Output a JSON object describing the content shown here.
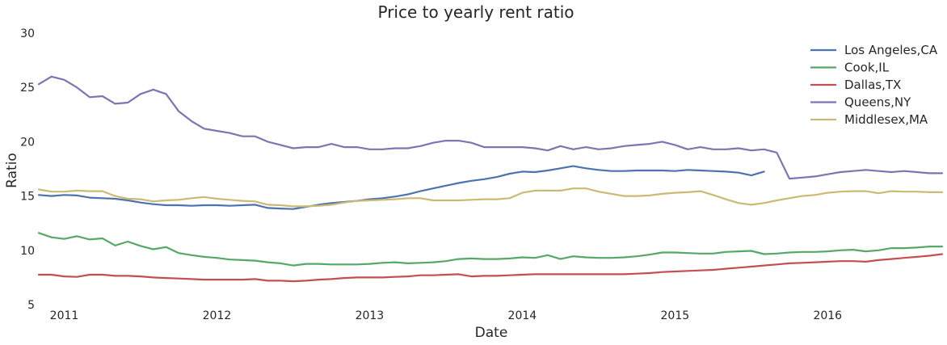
{
  "chart_data": {
    "type": "line",
    "title": "Price to yearly rent ratio",
    "xlabel": "Date",
    "ylabel": "Ratio",
    "ylim": [
      5,
      30
    ],
    "yticks": [
      5,
      10,
      15,
      20,
      25,
      30
    ],
    "xlim": [
      "2010-11",
      "2016-10"
    ],
    "xticks": [
      "2011",
      "2012",
      "2013",
      "2014",
      "2015",
      "2016"
    ],
    "grid": false,
    "legend_position": "top-right",
    "x": [
      "2010-11",
      "2010-12",
      "2011-01",
      "2011-02",
      "2011-03",
      "2011-04",
      "2011-05",
      "2011-06",
      "2011-07",
      "2011-08",
      "2011-09",
      "2011-10",
      "2011-11",
      "2011-12",
      "2012-01",
      "2012-02",
      "2012-03",
      "2012-04",
      "2012-05",
      "2012-06",
      "2012-07",
      "2012-08",
      "2012-09",
      "2012-10",
      "2012-11",
      "2012-12",
      "2013-01",
      "2013-02",
      "2013-03",
      "2013-04",
      "2013-05",
      "2013-06",
      "2013-07",
      "2013-08",
      "2013-09",
      "2013-10",
      "2013-11",
      "2013-12",
      "2014-01",
      "2014-02",
      "2014-03",
      "2014-04",
      "2014-05",
      "2014-06",
      "2014-07",
      "2014-08",
      "2014-09",
      "2014-10",
      "2014-11",
      "2014-12",
      "2015-01",
      "2015-02",
      "2015-03",
      "2015-04",
      "2015-05",
      "2015-06",
      "2015-07",
      "2015-08",
      "2015-09",
      "2015-10",
      "2015-11",
      "2015-12",
      "2016-01",
      "2016-02",
      "2016-03",
      "2016-04",
      "2016-05",
      "2016-06",
      "2016-07",
      "2016-08",
      "2016-09",
      "2016-10"
    ],
    "series": [
      {
        "name": "Los Angeles,CA",
        "color": "#4c72b0",
        "values": [
          15.1,
          15.0,
          15.1,
          15.05,
          14.85,
          14.8,
          14.75,
          14.6,
          14.4,
          14.25,
          14.15,
          14.15,
          14.1,
          14.15,
          14.15,
          14.1,
          14.15,
          14.2,
          13.9,
          13.85,
          13.8,
          14.0,
          14.2,
          14.35,
          14.45,
          14.55,
          14.7,
          14.8,
          14.95,
          15.15,
          15.45,
          15.7,
          15.95,
          16.2,
          16.4,
          16.55,
          16.75,
          17.05,
          17.25,
          17.2,
          17.35,
          17.55,
          17.75,
          17.55,
          17.4,
          17.3,
          17.3,
          17.35,
          17.35,
          17.35,
          17.3,
          17.4,
          17.35,
          17.3,
          17.25,
          17.15,
          16.9,
          17.25,
          null,
          null,
          null,
          null,
          null,
          null,
          null,
          null,
          null,
          null,
          null,
          null,
          null,
          null
        ]
      },
      {
        "name": "Cook,IL",
        "color": "#55a868",
        "values": [
          11.6,
          11.2,
          11.05,
          11.3,
          11.0,
          11.1,
          10.45,
          10.8,
          10.4,
          10.1,
          10.3,
          9.75,
          9.55,
          9.4,
          9.3,
          9.15,
          9.1,
          9.05,
          8.9,
          8.8,
          8.6,
          8.75,
          8.75,
          8.7,
          8.7,
          8.7,
          8.75,
          8.85,
          8.9,
          8.8,
          8.85,
          8.9,
          9.0,
          9.2,
          9.25,
          9.2,
          9.2,
          9.25,
          9.35,
          9.3,
          9.55,
          9.2,
          9.45,
          9.35,
          9.3,
          9.3,
          9.35,
          9.45,
          9.6,
          9.8,
          9.8,
          9.75,
          9.7,
          9.7,
          9.85,
          9.9,
          9.95,
          9.65,
          9.7,
          9.8,
          9.85,
          9.85,
          9.9,
          10.0,
          10.05,
          9.9,
          10.0,
          10.2,
          10.2,
          10.25,
          10.35,
          10.35
        ]
      },
      {
        "name": "Dallas,TX",
        "color": "#c44e52",
        "values": [
          7.75,
          7.75,
          7.6,
          7.55,
          7.75,
          7.75,
          7.65,
          7.65,
          7.6,
          7.5,
          7.45,
          7.4,
          7.35,
          7.3,
          7.3,
          7.3,
          7.3,
          7.35,
          7.2,
          7.2,
          7.15,
          7.2,
          7.3,
          7.35,
          7.45,
          7.5,
          7.5,
          7.5,
          7.55,
          7.6,
          7.7,
          7.7,
          7.75,
          7.8,
          7.6,
          7.65,
          7.65,
          7.7,
          7.75,
          7.8,
          7.8,
          7.8,
          7.8,
          7.8,
          7.8,
          7.8,
          7.8,
          7.85,
          7.9,
          8.0,
          8.05,
          8.1,
          8.15,
          8.2,
          8.3,
          8.4,
          8.5,
          8.6,
          8.7,
          8.8,
          8.85,
          8.9,
          8.95,
          9.0,
          9.0,
          8.95,
          9.1,
          9.2,
          9.3,
          9.4,
          9.5,
          9.65
        ]
      },
      {
        "name": "Queens,NY",
        "color": "#8172b2",
        "values": [
          25.3,
          26.0,
          25.7,
          25.0,
          24.1,
          24.2,
          23.5,
          23.6,
          24.4,
          24.8,
          24.4,
          22.8,
          21.9,
          21.2,
          21.0,
          20.8,
          20.5,
          20.5,
          20.0,
          19.7,
          19.4,
          19.5,
          19.5,
          19.8,
          19.5,
          19.5,
          19.3,
          19.3,
          19.4,
          19.4,
          19.6,
          19.9,
          20.1,
          20.1,
          19.9,
          19.5,
          19.5,
          19.5,
          19.5,
          19.4,
          19.2,
          19.6,
          19.3,
          19.5,
          19.3,
          19.4,
          19.6,
          19.7,
          19.8,
          20.0,
          19.7,
          19.3,
          19.5,
          19.3,
          19.3,
          19.4,
          19.2,
          19.3,
          19.0,
          16.6,
          16.7,
          16.8,
          17.0,
          17.2,
          17.3,
          17.4,
          17.3,
          17.2,
          17.3,
          17.2,
          17.1,
          17.1
        ]
      },
      {
        "name": "Middlesex,MA",
        "color": "#ccb974",
        "values": [
          15.6,
          15.4,
          15.4,
          15.5,
          15.45,
          15.45,
          15.0,
          14.75,
          14.7,
          14.5,
          14.6,
          14.65,
          14.8,
          14.9,
          14.75,
          14.65,
          14.55,
          14.5,
          14.2,
          14.15,
          14.05,
          14.05,
          14.1,
          14.2,
          14.4,
          14.55,
          14.6,
          14.65,
          14.7,
          14.8,
          14.8,
          14.6,
          14.6,
          14.6,
          14.65,
          14.7,
          14.7,
          14.8,
          15.3,
          15.5,
          15.5,
          15.5,
          15.7,
          15.7,
          15.4,
          15.2,
          15.0,
          15.0,
          15.05,
          15.2,
          15.3,
          15.35,
          15.45,
          15.1,
          14.7,
          14.35,
          14.2,
          14.35,
          14.6,
          14.8,
          15.0,
          15.1,
          15.3,
          15.4,
          15.45,
          15.45,
          15.25,
          15.45,
          15.4,
          15.4,
          15.35,
          15.35
        ]
      }
    ]
  }
}
